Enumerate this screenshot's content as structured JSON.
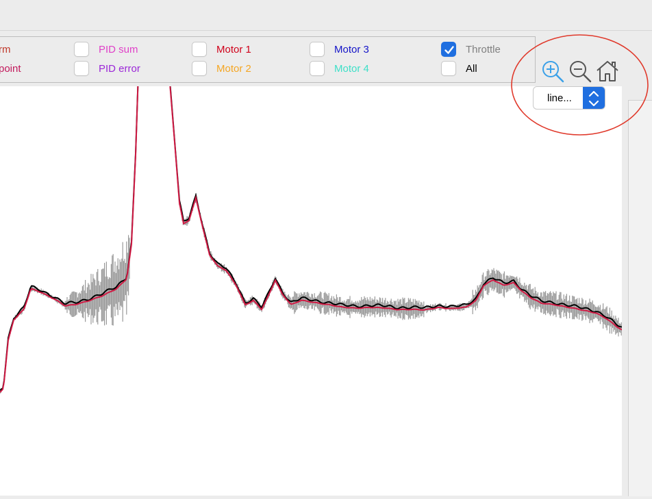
{
  "legend": {
    "items": [
      {
        "label": "rm",
        "color": "#c0392b",
        "checked": null
      },
      {
        "label": "point",
        "color": "#c2185b",
        "checked": null
      },
      {
        "label": "PID sum",
        "color": "#e040c8",
        "checked": false
      },
      {
        "label": "PID error",
        "color": "#9b27d8",
        "checked": false
      },
      {
        "label": "Motor 1",
        "color": "#d0021b",
        "checked": false
      },
      {
        "label": "Motor 2",
        "color": "#f5a623",
        "checked": false
      },
      {
        "label": "Motor 3",
        "color": "#1414c8",
        "checked": false
      },
      {
        "label": "Motor 4",
        "color": "#3ee0c8",
        "checked": false
      },
      {
        "label": "Throttle",
        "color": "#808080",
        "checked": true
      },
      {
        "label": "All",
        "color": "#000000",
        "checked": false
      }
    ]
  },
  "toolbar": {
    "zoom_in": "zoom-in-icon",
    "zoom_out": "zoom-out-icon",
    "home": "home-icon",
    "select_value": "line..."
  },
  "colors": {
    "accent": "#1f6fe0",
    "annotation_circle": "#e0392b",
    "series_gray": "#999999",
    "series_black": "#000000",
    "series_red": "#d11a44"
  }
}
